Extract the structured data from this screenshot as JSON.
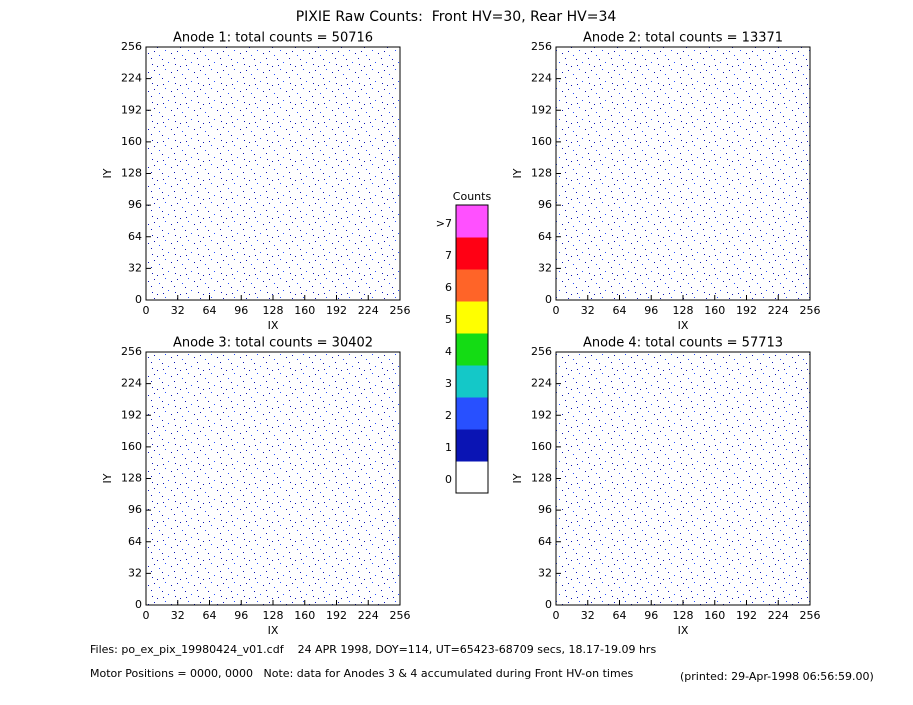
{
  "title": "PIXIE Raw Counts:  Front HV=30, Rear HV=34",
  "chart_data": [
    {
      "type": "heatmap",
      "title": "Anode 1: total counts = 50716",
      "xlabel": "IX",
      "ylabel": "IY",
      "xlim": [
        0,
        256
      ],
      "ylim": [
        0,
        256
      ],
      "xticks": [
        0,
        32,
        64,
        96,
        128,
        160,
        192,
        224,
        256
      ],
      "yticks": [
        0,
        32,
        64,
        96,
        128,
        160,
        192,
        224,
        256
      ]
    },
    {
      "type": "heatmap",
      "title": "Anode 2: total counts = 13371",
      "xlabel": "IX",
      "ylabel": "IY",
      "xlim": [
        0,
        256
      ],
      "ylim": [
        0,
        256
      ],
      "xticks": [
        0,
        32,
        64,
        96,
        128,
        160,
        192,
        224,
        256
      ],
      "yticks": [
        0,
        32,
        64,
        96,
        128,
        160,
        192,
        224,
        256
      ]
    },
    {
      "type": "heatmap",
      "title": "Anode 3: total counts = 30402",
      "xlabel": "IX",
      "ylabel": "IY",
      "xlim": [
        0,
        256
      ],
      "ylim": [
        0,
        256
      ],
      "xticks": [
        0,
        32,
        64,
        96,
        128,
        160,
        192,
        224,
        256
      ],
      "yticks": [
        0,
        32,
        64,
        96,
        128,
        160,
        192,
        224,
        256
      ]
    },
    {
      "type": "heatmap",
      "title": "Anode 4: total counts = 57713",
      "xlabel": "IX",
      "ylabel": "IY",
      "xlim": [
        0,
        256
      ],
      "ylim": [
        0,
        256
      ],
      "xticks": [
        0,
        32,
        64,
        96,
        128,
        160,
        192,
        224,
        256
      ],
      "yticks": [
        0,
        32,
        64,
        96,
        128,
        160,
        192,
        224,
        256
      ]
    }
  ],
  "colorbar": {
    "title": "Counts",
    "labels": [
      0,
      1,
      2,
      3,
      4,
      5,
      6,
      7,
      ">7"
    ],
    "colors": [
      "#ffffff",
      "#0a14b4",
      "#2850ff",
      "#14c8c8",
      "#14dc14",
      "#ffff00",
      "#ff6428",
      "#ff0014",
      "#ff50ff"
    ]
  },
  "footer": {
    "files": "Files: po_ex_pix_19980424_v01.cdf    24 APR 1998, DOY=114, UT=65423-68709 secs, 18.17-19.09 hrs",
    "note": "Motor Positions = 0000, 0000   Note: data for Anodes 3 & 4 accumulated during Front HV-on times",
    "printed": "(printed: 29-Apr-1998 06:56:59.00)"
  }
}
